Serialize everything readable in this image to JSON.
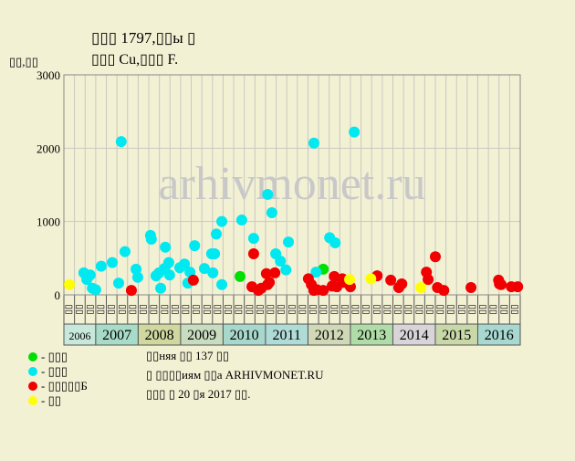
{
  "chart_data": {
    "type": "scatter",
    "title": "▯▯▯ 1797,▯▯ы ▯",
    "subtitle": "▯▯▯ Cu,▯▯▯ F.",
    "y_label": "▯▯,▯▯",
    "watermark": "arhivmonet.ru",
    "xlim": [
      2006.25,
      2017
    ],
    "ylim": [
      0,
      3000
    ],
    "yticks": [
      0,
      1000,
      2000,
      3000
    ],
    "grid": true,
    "xticks": [
      2006.25,
      2006.5,
      2006.75,
      2007,
      2007.25,
      2007.5,
      2007.75,
      2008,
      2008.25,
      2008.5,
      2008.75,
      2009,
      2009.25,
      2009.5,
      2009.75,
      2010,
      2010.25,
      2010.5,
      2010.75,
      2011,
      2011.25,
      2011.5,
      2011.75,
      2012,
      2012.25,
      2012.5,
      2012.75,
      2013,
      2013.25,
      2013.5,
      2013.75,
      2014,
      2014.25,
      2014.5,
      2014.75,
      2015,
      2015.25,
      2015.5,
      2015.75,
      2016,
      2016.25,
      2016.5,
      2016.75,
      2017
    ],
    "quarter_labels": [
      "▯▯",
      "▯▯",
      "▯▯",
      "▯▯",
      "▯▯",
      "▯▯",
      "▯▯",
      "▯▯",
      "▯▯",
      "▯▯",
      "▯▯",
      "▯▯",
      "▯▯",
      "▯▯",
      "▯▯",
      "▯▯",
      "▯▯",
      "▯▯",
      "▯▯",
      "▯▯",
      "▯▯",
      "▯▯",
      "▯▯",
      "▯▯",
      "▯▯",
      "▯▯",
      "▯▯",
      "▯▯",
      "▯▯",
      "▯▯",
      "▯▯",
      "▯▯",
      "▯▯",
      "▯▯",
      "▯▯",
      "▯▯",
      "▯▯",
      "▯▯",
      "▯▯",
      "▯▯",
      "▯▯",
      "▯▯",
      "▯▯"
    ],
    "years": [
      2006,
      2007,
      2008,
      2009,
      2010,
      2011,
      2012,
      2013,
      2014,
      2015,
      2016
    ],
    "year_colors": [
      "#c8e8dc",
      "#a8dcc8",
      "#d0d8a0",
      "#c8dcc0",
      "#a8d8cc",
      "#b0dcd8",
      "#d0d8b8",
      "#b0dca8",
      "#d8d4d8",
      "#c8d8a8",
      "#a8d8d0"
    ],
    "series": [
      {
        "name": "- ▯▯▯",
        "color": "#00e000",
        "x": [
          2010.4,
          2012.36
        ],
        "values": [
          250,
          350
        ]
      },
      {
        "name": "- ▯▯▯",
        "color": "#00e8f0",
        "x": [
          2006.72,
          2006.79,
          2006.87,
          2006.92,
          2007.0,
          2007.13,
          2007.39,
          2007.54,
          2007.6,
          2007.69,
          2007.95,
          2007.99,
          2008.29,
          2008.31,
          2008.42,
          2008.49,
          2008.53,
          2008.62,
          2008.64,
          2008.72,
          2008.74,
          2008.98,
          2009.09,
          2009.17,
          2009.22,
          2009.33,
          2009.56,
          2009.73,
          2009.76,
          2009.8,
          2009.84,
          2009.97,
          2009.97,
          2010.44,
          2010.72,
          2011.05,
          2011.15,
          2011.24,
          2011.35,
          2011.48,
          2011.54,
          2012.14,
          2012.19,
          2012.51,
          2012.64,
          2013.09
        ],
        "values": [
          300,
          210,
          270,
          90,
          70,
          390,
          440,
          160,
          2090,
          590,
          350,
          240,
          810,
          760,
          260,
          300,
          90,
          360,
          650,
          440,
          270,
          370,
          420,
          160,
          310,
          670,
          360,
          560,
          300,
          560,
          830,
          1000,
          140,
          1020,
          770,
          1370,
          1120,
          560,
          460,
          340,
          720,
          2070,
          310,
          780,
          710,
          2220
        ]
      },
      {
        "name": "- ▯▯▯▯▯Б",
        "color": "#f00000",
        "x": [
          2007.84,
          2009.3,
          2010.68,
          2010.72,
          2010.83,
          2010.9,
          2011.02,
          2011.05,
          2011.09,
          2011.22,
          2012.01,
          2012.08,
          2012.14,
          2012.21,
          2012.36,
          2012.57,
          2012.62,
          2012.68,
          2012.81,
          2012.85,
          2013.0,
          2013.63,
          2013.95,
          2014.14,
          2014.21,
          2014.79,
          2014.83,
          2015.0,
          2015.05,
          2015.2,
          2015.84,
          2016.49,
          2016.51,
          2016.55,
          2016.79,
          2016.94
        ],
        "values": [
          60,
          200,
          110,
          560,
          60,
          90,
          290,
          140,
          170,
          300,
          220,
          140,
          60,
          70,
          60,
          120,
          250,
          110,
          220,
          170,
          110,
          260,
          200,
          100,
          150,
          310,
          210,
          520,
          100,
          60,
          100,
          200,
          150,
          140,
          110,
          110
        ]
      },
      {
        "name": "- ▯▯",
        "color": "#ffff00",
        "x": [
          2006.38,
          2012.98,
          2013.48,
          2014.66
        ],
        "values": [
          140,
          210,
          220,
          100
        ]
      }
    ],
    "notes": [
      "▯▯няя ▯▯ 137 ▯▯",
      "▯ ▯▯▯▯иям ▯▯а ARHIVMONET.RU",
      "▯▯▯ ▯ 20 ▯я 2017 ▯▯."
    ]
  }
}
